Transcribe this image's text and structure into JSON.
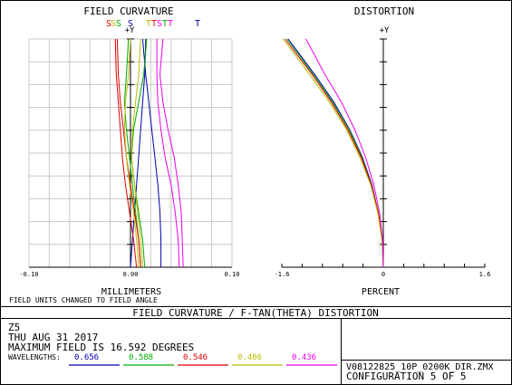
{
  "chart_data": [
    {
      "type": "line",
      "title": "FIELD CURVATURE",
      "xlabel": "MILLIMETERS",
      "ylabel": "+Y",
      "x_ticks": [
        "-0.10",
        "0.00",
        "0.10"
      ],
      "xlim": [
        -0.1,
        0.1
      ],
      "ylim": [
        0,
        16.592
      ],
      "grid": true,
      "legend": [
        "S",
        "T"
      ],
      "series": [
        {
          "name": "S 0.656",
          "color": "#0000aa",
          "y": [
            0,
            2,
            4,
            6,
            8,
            10,
            12,
            14,
            16.592
          ],
          "x": [
            0.0,
            0.002,
            0.004,
            0.006,
            0.008,
            0.01,
            0.012,
            0.014,
            0.015
          ]
        },
        {
          "name": "T 0.656",
          "color": "#0000aa",
          "y": [
            0,
            2,
            4,
            6,
            8,
            10,
            12,
            14,
            16.592
          ],
          "x": [
            0.03,
            0.03,
            0.029,
            0.027,
            0.024,
            0.021,
            0.018,
            0.015,
            0.012
          ]
        },
        {
          "name": "S 0.588",
          "color": "#00aa00",
          "y": [
            0,
            2,
            4,
            6,
            8,
            10,
            12,
            14,
            16.592
          ],
          "x": [
            0.01,
            0.008,
            0.005,
            0.002,
            -0.001,
            -0.004,
            -0.006,
            -0.004,
            -0.002
          ]
        },
        {
          "name": "T 0.588",
          "color": "#00aa00",
          "y": [
            0,
            2,
            4,
            6,
            8,
            10,
            12,
            14,
            16.592
          ],
          "x": [
            0.014,
            0.012,
            0.008,
            0.004,
            0.001,
            0.003,
            0.008,
            0.013,
            0.016
          ]
        },
        {
          "name": "S 0.546",
          "color": "#dd0000",
          "y": [
            0,
            2,
            4,
            6,
            8,
            10,
            12,
            14,
            16.592
          ],
          "x": [
            0.006,
            0.003,
            -0.001,
            -0.005,
            -0.008,
            -0.01,
            -0.012,
            -0.014,
            -0.015
          ]
        },
        {
          "name": "T 0.546",
          "color": "#dd0000",
          "y": [
            0,
            2,
            4,
            6,
            8,
            10,
            12,
            14,
            16.592
          ],
          "x": [
            0.01,
            0.008,
            0.004,
            0.0,
            -0.004,
            -0.007,
            -0.01,
            -0.012,
            -0.013
          ]
        },
        {
          "name": "S 0.486",
          "color": "#bbbb00",
          "y": [
            0,
            2,
            4,
            6,
            8,
            10,
            12,
            14,
            16.592
          ],
          "x": [
            0.008,
            0.006,
            0.003,
            -0.001,
            -0.004,
            -0.006,
            -0.005,
            -0.002,
            0.0
          ]
        },
        {
          "name": "T 0.486",
          "color": "#bbbb00",
          "y": [
            0,
            2,
            4,
            6,
            8,
            10,
            12,
            14,
            16.592
          ],
          "x": [
            0.012,
            0.01,
            0.007,
            0.004,
            0.001,
            0.002,
            0.005,
            0.008,
            0.01
          ]
        },
        {
          "name": "S 0.436",
          "color": "#ee00ee",
          "y": [
            0,
            2,
            4,
            6,
            8,
            10,
            12,
            14,
            16.592
          ],
          "x": [
            0.048,
            0.047,
            0.044,
            0.04,
            0.034,
            0.03,
            0.027,
            0.026,
            0.026
          ]
        },
        {
          "name": "T 0.436",
          "color": "#ee00ee",
          "y": [
            0,
            2,
            4,
            6,
            8,
            10,
            12,
            14,
            16.592
          ],
          "x": [
            0.052,
            0.051,
            0.05,
            0.047,
            0.043,
            0.037,
            0.032,
            0.029,
            0.032
          ]
        }
      ]
    },
    {
      "type": "line",
      "title": "DISTORTION",
      "xlabel": "PERCENT",
      "ylabel": "+Y",
      "x_ticks": [
        "-1.6",
        "0",
        "1.6"
      ],
      "xlim": [
        -1.6,
        1.6
      ],
      "ylim": [
        0,
        16.592
      ],
      "grid": false,
      "series": [
        {
          "name": "0.656",
          "color": "#0000aa",
          "y": [
            0,
            2,
            4,
            6,
            8,
            10,
            12,
            14,
            16.592
          ],
          "x": [
            0.0,
            -0.02,
            -0.08,
            -0.18,
            -0.33,
            -0.53,
            -0.78,
            -1.08,
            -1.5
          ]
        },
        {
          "name": "0.588",
          "color": "#00aa00",
          "y": [
            0,
            2,
            4,
            6,
            8,
            10,
            12,
            14,
            16.592
          ],
          "x": [
            0.0,
            -0.02,
            -0.08,
            -0.19,
            -0.34,
            -0.54,
            -0.8,
            -1.1,
            -1.52
          ]
        },
        {
          "name": "0.546",
          "color": "#dd0000",
          "y": [
            0,
            2,
            4,
            6,
            8,
            10,
            12,
            14,
            16.592
          ],
          "x": [
            0.0,
            -0.02,
            -0.08,
            -0.19,
            -0.35,
            -0.56,
            -0.82,
            -1.12,
            -1.55
          ]
        },
        {
          "name": "0.486",
          "color": "#bbbb00",
          "y": [
            0,
            2,
            4,
            6,
            8,
            10,
            12,
            14,
            16.592
          ],
          "x": [
            0.0,
            -0.02,
            -0.09,
            -0.2,
            -0.37,
            -0.58,
            -0.85,
            -1.16,
            -1.58
          ]
        },
        {
          "name": "0.436",
          "color": "#ee00ee",
          "y": [
            0,
            2,
            4,
            6,
            8,
            10,
            12,
            14,
            16.592
          ],
          "x": [
            0.0,
            -0.01,
            -0.06,
            -0.15,
            -0.28,
            -0.45,
            -0.66,
            -0.92,
            -1.22
          ]
        }
      ]
    }
  ],
  "legend_labels": {
    "sag": [
      {
        "text": "S",
        "color": "#dd0000"
      },
      {
        "text": "S",
        "color": "#bbbb00"
      },
      {
        "text": "S",
        "color": "#00aa00"
      },
      {
        "text": "S",
        "color": "#0000aa"
      }
    ],
    "tan": [
      {
        "text": "T",
        "color": "#bbbb00"
      },
      {
        "text": "T",
        "color": "#dd0000"
      },
      {
        "text": "S",
        "color": "#ee00ee"
      },
      {
        "text": "T",
        "color": "#00aa00"
      },
      {
        "text": "T",
        "color": "#ee00ee"
      },
      {
        "text": "T",
        "color": "#0000aa"
      }
    ]
  },
  "notes": {
    "field_units": "FIELD UNITS CHANGED TO FIELD ANGLE"
  },
  "banner": {
    "title": "FIELD CURVATURE / F-TAN(THETA) DISTORTION"
  },
  "info": {
    "line1": "Z5",
    "line2": "THU AUG 31 2017",
    "line3": "MAXIMUM FIELD IS 16.592 DEGREES",
    "wavelengths_label": "WAVELENGTHS:",
    "wavelengths": [
      {
        "value": "0.656",
        "color": "#0000aa"
      },
      {
        "value": "0.588",
        "color": "#00aa00"
      },
      {
        "value": "0.546",
        "color": "#dd0000"
      },
      {
        "value": "0.486",
        "color": "#bbbb00"
      },
      {
        "value": "0.436",
        "color": "#ee00ee"
      }
    ],
    "filename": "V08122825_10P_0200K_DIR.ZMX",
    "configuration": "CONFIGURATION 5 OF 5"
  }
}
